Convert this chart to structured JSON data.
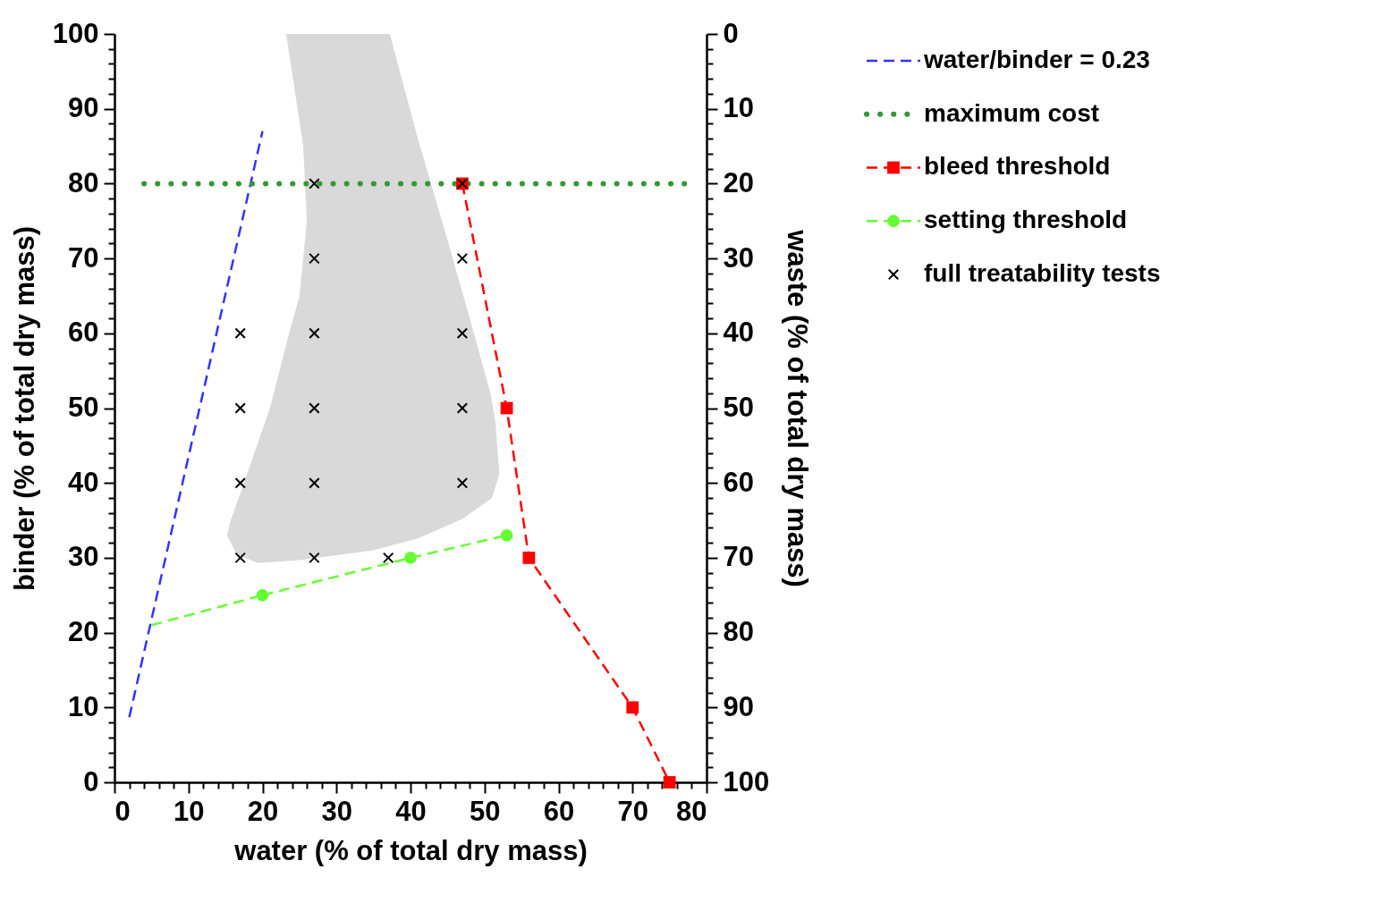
{
  "chart_data": {
    "type": "line",
    "xlabel": "water (% of total dry mass)",
    "ylabel": "binder (% of total dry mass)",
    "y2label": "waste (% of total dry mass)",
    "xlim": [
      0,
      80
    ],
    "ylim": [
      0,
      100
    ],
    "y2lim": [
      100,
      0
    ],
    "xticks": [
      0,
      {
        "value": 2,
        "label": null
      },
      {
        "value": 4,
        "label": null
      },
      {
        "value": 6,
        "label": null
      },
      {
        "value": 8,
        "label": null
      },
      10,
      {
        "value": 12,
        "label": null
      },
      {
        "value": 14,
        "label": null
      },
      {
        "value": 16,
        "label": null
      },
      {
        "value": 18,
        "label": null
      },
      20,
      {
        "value": 22,
        "label": null
      },
      {
        "value": 24,
        "label": null
      },
      {
        "value": 26,
        "label": null
      },
      {
        "value": 28,
        "label": null
      },
      30,
      {
        "value": 32,
        "label": null
      },
      {
        "value": 34,
        "label": null
      },
      {
        "value": 36,
        "label": null
      },
      {
        "value": 38,
        "label": null
      },
      40,
      {
        "value": 42,
        "label": null
      },
      {
        "value": 44,
        "label": null
      },
      {
        "value": 46,
        "label": null
      },
      {
        "value": 48,
        "label": null
      },
      50,
      {
        "value": 52,
        "label": null
      },
      {
        "value": 54,
        "label": null
      },
      {
        "value": 56,
        "label": null
      },
      {
        "value": 58,
        "label": null
      },
      60,
      {
        "value": 62,
        "label": null
      },
      {
        "value": 64,
        "label": null
      },
      {
        "value": 66,
        "label": null
      },
      {
        "value": 68,
        "label": null
      },
      70,
      {
        "value": 72,
        "label": null
      },
      {
        "value": 74,
        "label": null
      },
      {
        "value": 76,
        "label": null
      },
      {
        "value": 78,
        "label": null
      },
      80
    ],
    "yticks": [
      0,
      {
        "value": 2,
        "label": null
      },
      {
        "value": 4,
        "label": null
      },
      {
        "value": 6,
        "label": null
      },
      {
        "value": 8,
        "label": null
      },
      10,
      {
        "value": 12,
        "label": null
      },
      {
        "value": 14,
        "label": null
      },
      {
        "value": 16,
        "label": null
      },
      {
        "value": 18,
        "label": null
      },
      20,
      {
        "value": 22,
        "label": null
      },
      {
        "value": 24,
        "label": null
      },
      {
        "value": 26,
        "label": null
      },
      {
        "value": 28,
        "label": null
      },
      30,
      {
        "value": 32,
        "label": null
      },
      {
        "value": 34,
        "label": null
      },
      {
        "value": 36,
        "label": null
      },
      {
        "value": 38,
        "label": null
      },
      40,
      {
        "value": 42,
        "label": null
      },
      {
        "value": 44,
        "label": null
      },
      {
        "value": 46,
        "label": null
      },
      {
        "value": 48,
        "label": null
      },
      50,
      {
        "value": 52,
        "label": null
      },
      {
        "value": 54,
        "label": null
      },
      {
        "value": 56,
        "label": null
      },
      {
        "value": 58,
        "label": null
      },
      60,
      {
        "value": 62,
        "label": null
      },
      {
        "value": 64,
        "label": null
      },
      {
        "value": 66,
        "label": null
      },
      {
        "value": 68,
        "label": null
      },
      70,
      {
        "value": 72,
        "label": null
      },
      {
        "value": 74,
        "label": null
      },
      {
        "value": 76,
        "label": null
      },
      {
        "value": 78,
        "label": null
      },
      80,
      {
        "value": 82,
        "label": null
      },
      {
        "value": 84,
        "label": null
      },
      {
        "value": 86,
        "label": null
      },
      {
        "value": 88,
        "label": null
      },
      90,
      {
        "value": 92,
        "label": null
      },
      {
        "value": 94,
        "label": null
      },
      {
        "value": 96,
        "label": null
      },
      {
        "value": 98,
        "label": null
      },
      100
    ],
    "y2ticks": [
      0,
      {
        "value": 2,
        "label": null
      },
      {
        "value": 4,
        "label": null
      },
      {
        "value": 6,
        "label": null
      },
      {
        "value": 8,
        "label": null
      },
      10,
      {
        "value": 12,
        "label": null
      },
      {
        "value": 14,
        "label": null
      },
      {
        "value": 16,
        "label": null
      },
      {
        "value": 18,
        "label": null
      },
      20,
      {
        "value": 22,
        "label": null
      },
      {
        "value": 24,
        "label": null
      },
      {
        "value": 26,
        "label": null
      },
      {
        "value": 28,
        "label": null
      },
      30,
      {
        "value": 32,
        "label": null
      },
      {
        "value": 34,
        "label": null
      },
      {
        "value": 36,
        "label": null
      },
      {
        "value": 38,
        "label": null
      },
      40,
      {
        "value": 42,
        "label": null
      },
      {
        "value": 44,
        "label": null
      },
      {
        "value": 46,
        "label": null
      },
      {
        "value": 48,
        "label": null
      },
      50,
      {
        "value": 52,
        "label": null
      },
      {
        "value": 54,
        "label": null
      },
      {
        "value": 56,
        "label": null
      },
      {
        "value": 58,
        "label": null
      },
      60,
      {
        "value": 62,
        "label": null
      },
      {
        "value": 64,
        "label": null
      },
      {
        "value": 66,
        "label": null
      },
      {
        "value": 68,
        "label": null
      },
      70,
      {
        "value": 72,
        "label": null
      },
      {
        "value": 74,
        "label": null
      },
      {
        "value": 76,
        "label": null
      },
      {
        "value": 78,
        "label": null
      },
      80,
      {
        "value": 82,
        "label": null
      },
      {
        "value": 84,
        "label": null
      },
      {
        "value": 86,
        "label": null
      },
      {
        "value": 88,
        "label": null
      },
      90,
      {
        "value": 92,
        "label": null
      },
      {
        "value": 94,
        "label": null
      },
      {
        "value": 96,
        "label": null
      },
      {
        "value": 98,
        "label": null
      },
      100
    ],
    "legend": "top right",
    "series": [
      {
        "type": "area",
        "color": "#d9d9d9",
        "x": [
          23.2,
          25.5,
          26,
          25,
          23.6,
          21,
          17.5,
          15.7,
          15.2,
          16.5,
          19.3,
          25,
          35,
          41,
          47,
          51,
          52,
          51.5,
          50.8,
          48,
          44.7,
          41,
          37.2
        ],
        "values": [
          100,
          85,
          75,
          65,
          60,
          50,
          40,
          35,
          33,
          30.5,
          29.3,
          29.7,
          31,
          32.6,
          35.2,
          38,
          41.2,
          48,
          52,
          62,
          73.5,
          86,
          100
        ]
      },
      {
        "name": "water/binder = 0.23",
        "color": "#3333ff",
        "line_style": "dashed",
        "marker": "none",
        "x": [
          2,
          20
        ],
        "values": [
          8.7,
          87
        ]
      },
      {
        "name": "maximum cost",
        "color": "#339933",
        "line_style": "dotted",
        "marker": "none",
        "x": [
          4,
          78
        ],
        "values": [
          80,
          80
        ]
      },
      {
        "name": "bleed threshold",
        "color": "#ff0000",
        "line_style": "dashed",
        "marker": "square",
        "x": [
          47,
          53,
          56,
          70,
          75
        ],
        "values": [
          80,
          50,
          30,
          10,
          0
        ]
      },
      {
        "color": "#66ff33",
        "line_style": "dashed",
        "x": [
          5,
          20
        ],
        "values": [
          21,
          25
        ]
      },
      {
        "name": "setting threshold",
        "color": "#66ff33",
        "line_style": "dashed",
        "marker": "circle",
        "x": [
          20,
          40,
          53
        ],
        "values": [
          25,
          30,
          33
        ]
      },
      {
        "name": "full treatability tests",
        "type": "scatter",
        "color": "#000000",
        "marker": "cross",
        "x": [
          17,
          17,
          17,
          17,
          27,
          27,
          27,
          27,
          27,
          27,
          37,
          47,
          47,
          47,
          47,
          47
        ],
        "values": [
          30,
          40,
          50,
          60,
          30,
          40,
          50,
          60,
          70,
          80,
          30,
          40,
          50,
          60,
          70,
          80
        ]
      }
    ]
  }
}
